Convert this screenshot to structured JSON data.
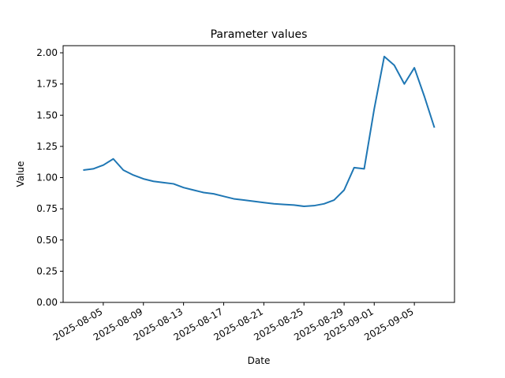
{
  "chart_data": {
    "type": "line",
    "title": "Parameter values",
    "x_label": "Date",
    "y_label": "Value",
    "x": [
      "2025-08-03",
      "2025-08-04",
      "2025-08-05",
      "2025-08-06",
      "2025-08-07",
      "2025-08-08",
      "2025-08-09",
      "2025-08-10",
      "2025-08-11",
      "2025-08-12",
      "2025-08-13",
      "2025-08-14",
      "2025-08-15",
      "2025-08-16",
      "2025-08-17",
      "2025-08-18",
      "2025-08-19",
      "2025-08-20",
      "2025-08-21",
      "2025-08-22",
      "2025-08-23",
      "2025-08-24",
      "2025-08-25",
      "2025-08-26",
      "2025-08-27",
      "2025-08-28",
      "2025-08-29",
      "2025-08-30",
      "2025-08-31",
      "2025-09-01",
      "2025-09-02",
      "2025-09-03",
      "2025-09-04",
      "2025-09-05",
      "2025-09-06",
      "2025-09-07"
    ],
    "values": [
      1.06,
      1.07,
      1.1,
      1.15,
      1.06,
      1.02,
      0.99,
      0.97,
      0.96,
      0.95,
      0.92,
      0.9,
      0.88,
      0.87,
      0.85,
      0.83,
      0.82,
      0.81,
      0.8,
      0.79,
      0.785,
      0.78,
      0.77,
      0.775,
      0.79,
      0.82,
      0.9,
      1.08,
      1.07,
      1.55,
      1.97,
      1.9,
      1.75,
      1.88,
      1.65,
      1.4
    ],
    "color": "#1f77b4",
    "xlim": [
      "2025-08-01",
      "2025-09-09"
    ],
    "xticks": [
      "2025-08-05",
      "2025-08-09",
      "2025-08-13",
      "2025-08-17",
      "2025-08-21",
      "2025-08-25",
      "2025-08-29",
      "2025-09-01",
      "2025-09-05"
    ],
    "ylim": [
      0,
      2.057
    ],
    "yticks": [
      {
        "value": 0,
        "label": "0.00"
      },
      {
        "value": 0.25,
        "label": "0.25"
      },
      {
        "value": 0.5,
        "label": "0.50"
      },
      {
        "value": 0.75,
        "label": "0.75"
      },
      {
        "value": 1,
        "label": "1.00"
      },
      {
        "value": 1.25,
        "label": "1.25"
      },
      {
        "value": 1.5,
        "label": "1.50"
      },
      {
        "value": 1.75,
        "label": "1.75"
      },
      {
        "value": 2,
        "label": "2.00"
      }
    ]
  }
}
